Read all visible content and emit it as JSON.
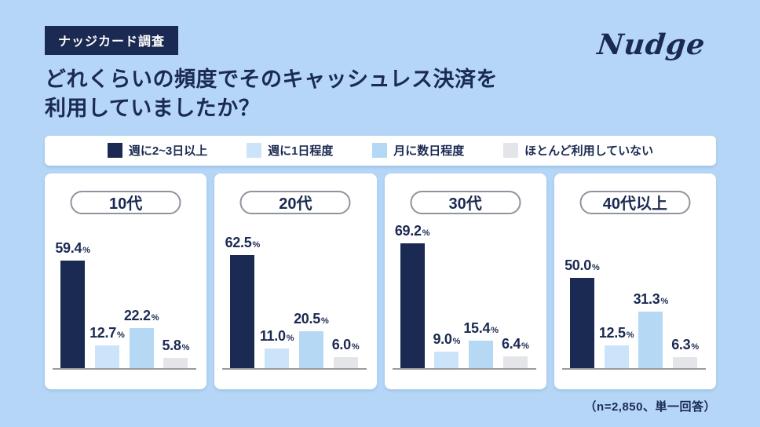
{
  "page": {
    "background_color": "#B5D6F6",
    "accent_navy": "#1B2A52"
  },
  "header": {
    "badge": "ナッジカード調査",
    "title_line1": "どれくらいの頻度でそのキャッシュレス決済を",
    "title_line2": "利用していましたか？",
    "logo": "Nudge"
  },
  "chart_data": {
    "type": "bar",
    "title": "どれくらいの頻度でそのキャッシュレス決済を利用していましたか？",
    "value_suffix": "%",
    "ylim": [
      0,
      75
    ],
    "legend_position": "top",
    "grid": false,
    "series": [
      {
        "name": "週に2~3日以上",
        "color": "#1B2A52"
      },
      {
        "name": "週に1日程度",
        "color": "#CBE4FA"
      },
      {
        "name": "月に数日程度",
        "color": "#B5D8F5"
      },
      {
        "name": "ほとんど利用していない",
        "color": "#E4E5E8"
      }
    ],
    "groups": [
      {
        "label": "10代",
        "values": [
          59.4,
          12.7,
          22.2,
          5.8
        ],
        "labels": [
          "59.4",
          "12.7",
          "22.2",
          "5.8"
        ]
      },
      {
        "label": "20代",
        "values": [
          62.5,
          11.0,
          20.5,
          6.0
        ],
        "labels": [
          "62.5",
          "11.0",
          "20.5",
          "6.0"
        ]
      },
      {
        "label": "30代",
        "values": [
          69.2,
          9.0,
          15.4,
          6.4
        ],
        "labels": [
          "69.2",
          "9.0",
          "15.4",
          "6.4"
        ]
      },
      {
        "label": "40代以上",
        "values": [
          50.0,
          12.5,
          31.3,
          6.3
        ],
        "labels": [
          "50.0",
          "12.5",
          "31.3",
          "6.3"
        ]
      }
    ]
  },
  "footer": {
    "note": "（n=2,850、単一回答）"
  }
}
